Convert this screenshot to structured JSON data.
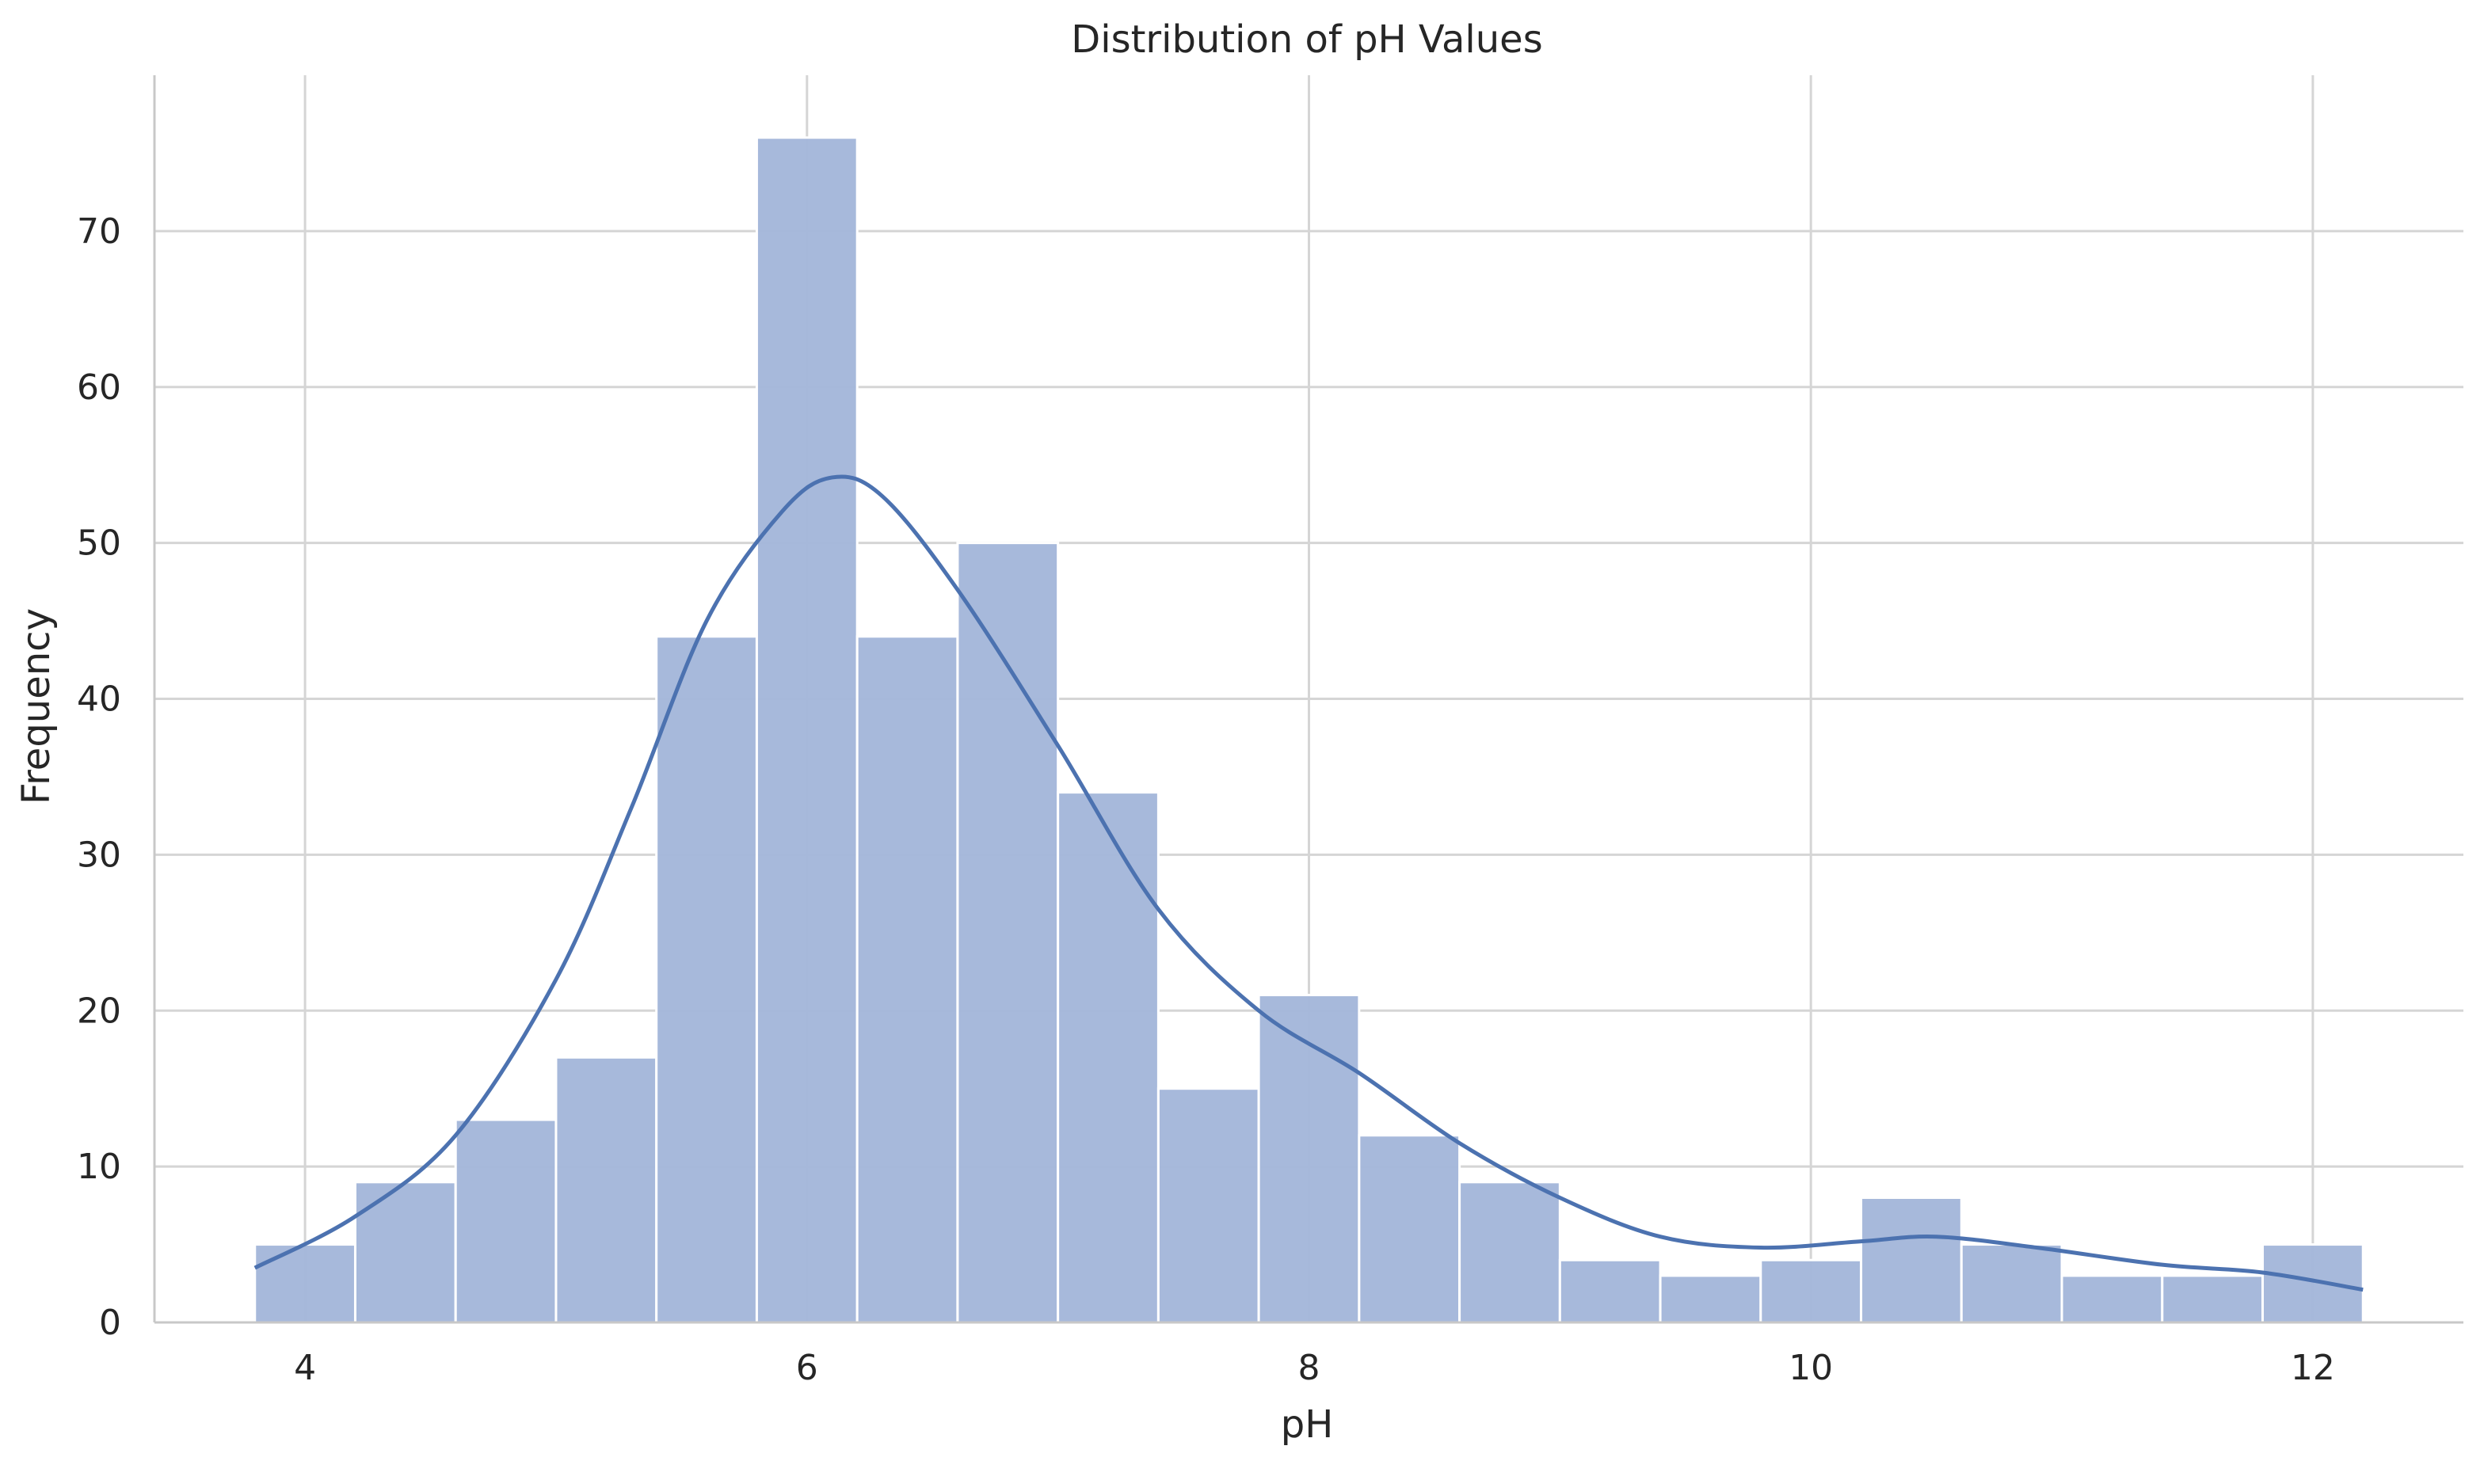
{
  "chart_data": {
    "type": "bar",
    "title": "Distribution of pH Values",
    "xlabel": "pH",
    "ylabel": "Frequency",
    "xlim": [
      3.4,
      12.6
    ],
    "ylim": [
      0,
      80
    ],
    "grid": true,
    "x_ticks": [
      4,
      6,
      8,
      10,
      12
    ],
    "y_ticks": [
      0,
      10,
      20,
      30,
      40,
      50,
      60,
      70
    ],
    "bin_start": 3.8,
    "bin_width": 0.4,
    "values": [
      5,
      9,
      13,
      17,
      44,
      76,
      44,
      50,
      34,
      15,
      21,
      12,
      9,
      4,
      3,
      4,
      8,
      5,
      3,
      3,
      5
    ],
    "kde": {
      "x": [
        3.8,
        4.2,
        4.6,
        5.0,
        5.3,
        5.6,
        5.9,
        6.1,
        6.3,
        6.6,
        7.0,
        7.4,
        7.8,
        8.2,
        8.6,
        9.0,
        9.4,
        9.8,
        10.2,
        10.5,
        10.9,
        11.4,
        11.8,
        12.2
      ],
      "y": [
        3.5,
        6.8,
        12.0,
        22.0,
        33.0,
        45.0,
        52.0,
        54.2,
        53.0,
        47.0,
        37.0,
        26.5,
        20.0,
        16.0,
        11.5,
        8.0,
        5.5,
        4.8,
        5.2,
        5.5,
        4.8,
        3.7,
        3.2,
        2.1
      ]
    },
    "colors": {
      "bar_fill": "#a5b8da",
      "bar_stroke": "#ffffff",
      "kde_line": "#4c72b0",
      "grid": "#d5d5d5",
      "axis": "#c8c8c8"
    }
  }
}
